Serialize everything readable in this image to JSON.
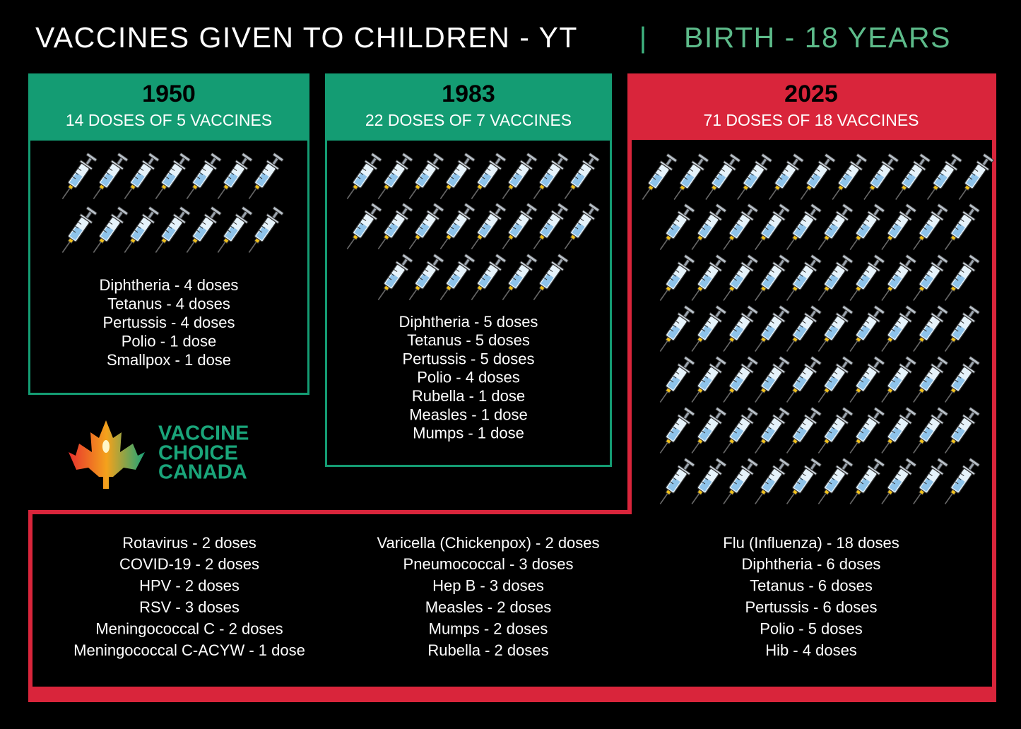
{
  "header": {
    "title": "VACCINES GIVEN TO CHILDREN - YT",
    "separator": "|",
    "subtitle": "BIRTH - 18 YEARS"
  },
  "panels": [
    {
      "year": "1950",
      "summary": "14 DOSES OF 5 VACCINES",
      "items": [
        "Diphtheria - 4 doses",
        "Tetanus - 4 doses",
        "Pertussis - 4 doses",
        "Polio - 1 dose",
        "Smallpox - 1 dose"
      ]
    },
    {
      "year": "1983",
      "summary": "22 DOSES OF 7 VACCINES",
      "items": [
        "Diphtheria - 5 doses",
        "Tetanus - 5 doses",
        "Pertussis - 5 doses",
        "Polio - 4 doses",
        "Rubella - 1 dose",
        "Measles - 1 dose",
        "Mumps - 1 dose"
      ]
    },
    {
      "year": "2025",
      "summary": "71 DOSES OF 18 VACCINES",
      "columns": [
        [
          "Rotavirus - 2 doses",
          "COVID-19 - 2 doses",
          "HPV - 2 doses",
          "RSV - 3 doses",
          "Meningococcal C - 2 doses",
          "Meningococcal C-ACYW - 1 dose"
        ],
        [
          "Varicella (Chickenpox) - 2 doses",
          "Pneumococcal - 3 doses",
          "Hep B - 3 doses",
          "Measles - 2 doses",
          "Mumps - 2 doses",
          "Rubella - 2 doses"
        ],
        [
          "Flu (Influenza) - 18 doses",
          "Diphtheria - 6 doses",
          "Tetanus - 6 doses",
          "Pertussis - 6 doses",
          "Polio - 5 doses",
          "Hib - 4 doses"
        ]
      ]
    }
  ],
  "logo": {
    "lines": [
      "VACCINE",
      "CHOICE",
      "CANADA"
    ]
  }
}
